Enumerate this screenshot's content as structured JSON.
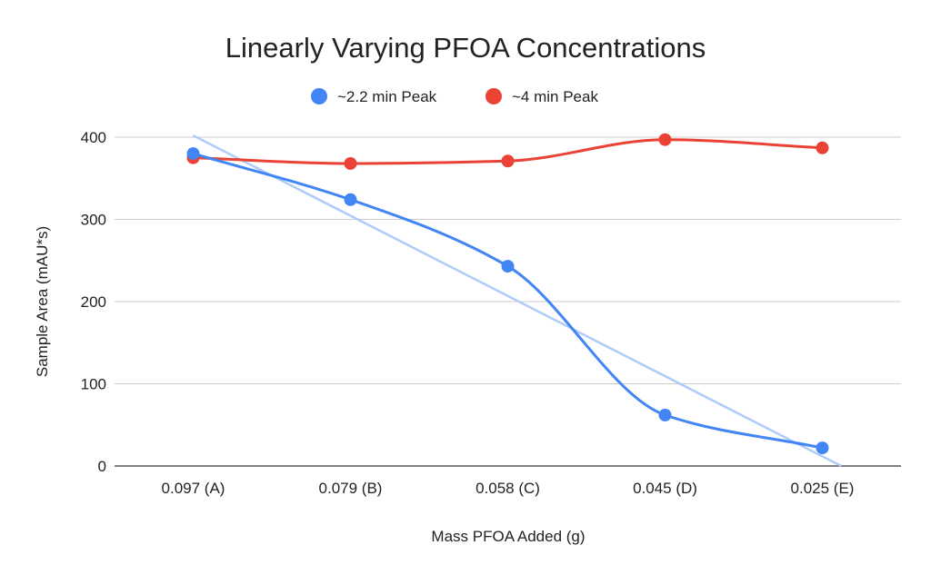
{
  "chart_data": {
    "type": "line",
    "title": "Linearly Varying PFOA Concentrations",
    "xlabel": "Mass PFOA Added (g)",
    "ylabel": "Sample Area (mAU*s)",
    "categories": [
      "0.097 (A)",
      "0.079 (B)",
      "0.058 (C)",
      "0.045 (D)",
      "0.025 (E)"
    ],
    "ylim": [
      0,
      400
    ],
    "yticks": [
      0,
      100,
      200,
      300,
      400
    ],
    "grid": true,
    "legend_position": "top",
    "series": [
      {
        "name": "~2.2 min Peak",
        "color": "#4285f4",
        "values": [
          380,
          324,
          243,
          62,
          22
        ]
      },
      {
        "name": "~4 min Peak",
        "color": "#ea4335",
        "values": [
          375,
          368,
          371,
          397,
          387
        ]
      }
    ],
    "trendline": {
      "series": "~2.2 min Peak",
      "color": "#aecbfa",
      "start": [
        0,
        402
      ],
      "end": [
        4.12,
        0
      ]
    }
  }
}
